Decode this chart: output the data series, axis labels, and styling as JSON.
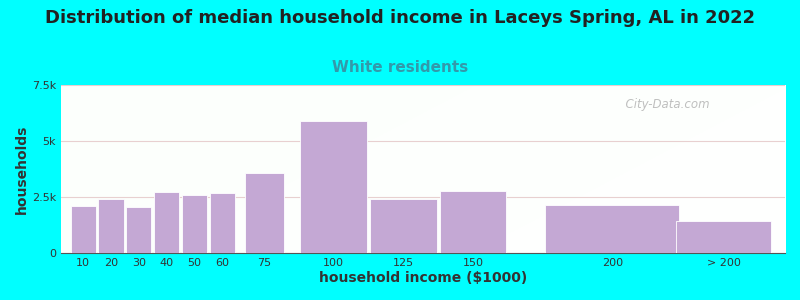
{
  "title": "Distribution of median household income in Laceys Spring, AL in 2022",
  "subtitle": "White residents",
  "xlabel": "household income ($1000)",
  "ylabel": "households",
  "bg_color": "#00FFFF",
  "bar_color": "#C4A8D4",
  "bar_edge_color": "#FFFFFF",
  "subtitle_color": "#3399AA",
  "title_color": "#222222",
  "bar_values": [
    2100,
    2400,
    2050,
    2750,
    2600,
    2700,
    3600,
    5900,
    2400,
    2800,
    2150,
    1450
  ],
  "bar_centers": [
    10,
    20,
    30,
    40,
    50,
    60,
    75,
    100,
    125,
    150,
    200,
    240
  ],
  "bar_widths": [
    9,
    9,
    9,
    9,
    9,
    9,
    14,
    24,
    24,
    24,
    48,
    34
  ],
  "xtick_positions": [
    10,
    20,
    30,
    40,
    50,
    60,
    75,
    100,
    125,
    150,
    200,
    240
  ],
  "xtick_labels": [
    "10",
    "20",
    "30",
    "40",
    "50",
    "60",
    "75",
    "100",
    "125",
    "150",
    "200",
    "> 200"
  ],
  "ylim": [
    0,
    7500
  ],
  "yticks": [
    0,
    2500,
    5000,
    7500
  ],
  "ytick_labels": [
    "0",
    "2.5k",
    "5k",
    "7.5k"
  ],
  "xlim": [
    2,
    262
  ],
  "title_fontsize": 13,
  "subtitle_fontsize": 11,
  "axis_label_fontsize": 10,
  "tick_fontsize": 8,
  "watermark": "City-Data.com"
}
